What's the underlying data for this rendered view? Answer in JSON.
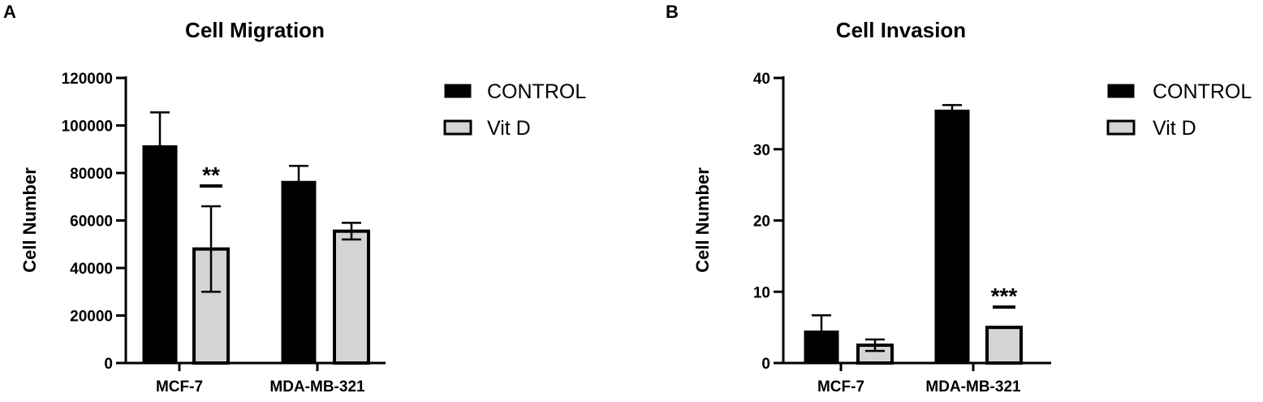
{
  "chart_data": [
    {
      "type": "bar",
      "panel_label": "A",
      "title": "Cell Migration",
      "xlabel": "",
      "ylabel": "Cell Number",
      "ylim": [
        0,
        120000
      ],
      "yticks": [
        "0",
        "20000",
        "40000",
        "60000",
        "80000",
        "100000",
        "120000"
      ],
      "categories": [
        "MCF-7",
        "MDA-MB-321"
      ],
      "series": [
        {
          "name": "CONTROL",
          "fill": "#000000",
          "values": [
            91500,
            76500
          ],
          "errors": [
            14000,
            6500
          ]
        },
        {
          "name": "Vit D",
          "fill": "#d4d4d4",
          "values": [
            48000,
            55500
          ],
          "errors": [
            18000,
            3500
          ]
        }
      ],
      "annotations": [
        {
          "text": "**",
          "category": "MCF-7",
          "series": "Vit D"
        }
      ],
      "legend_position": "right",
      "grid": false
    },
    {
      "type": "bar",
      "panel_label": "B",
      "title": "Cell Invasion",
      "xlabel": "",
      "ylabel": "Cell Number",
      "ylim": [
        0,
        40
      ],
      "yticks": [
        "0",
        "10",
        "20",
        "30",
        "40"
      ],
      "categories": [
        "MCF-7",
        "MDA-MB-321"
      ],
      "series": [
        {
          "name": "CONTROL",
          "fill": "#000000",
          "values": [
            4.5,
            35.5
          ],
          "errors": [
            2.2,
            0.7
          ]
        },
        {
          "name": "Vit D",
          "fill": "#d4d4d4",
          "values": [
            2.5,
            5.0
          ],
          "errors": [
            0.8,
            0
          ]
        }
      ],
      "annotations": [
        {
          "text": "***",
          "category": "MDA-MB-321",
          "series": "Vit D"
        }
      ],
      "legend_position": "right",
      "grid": false
    }
  ]
}
